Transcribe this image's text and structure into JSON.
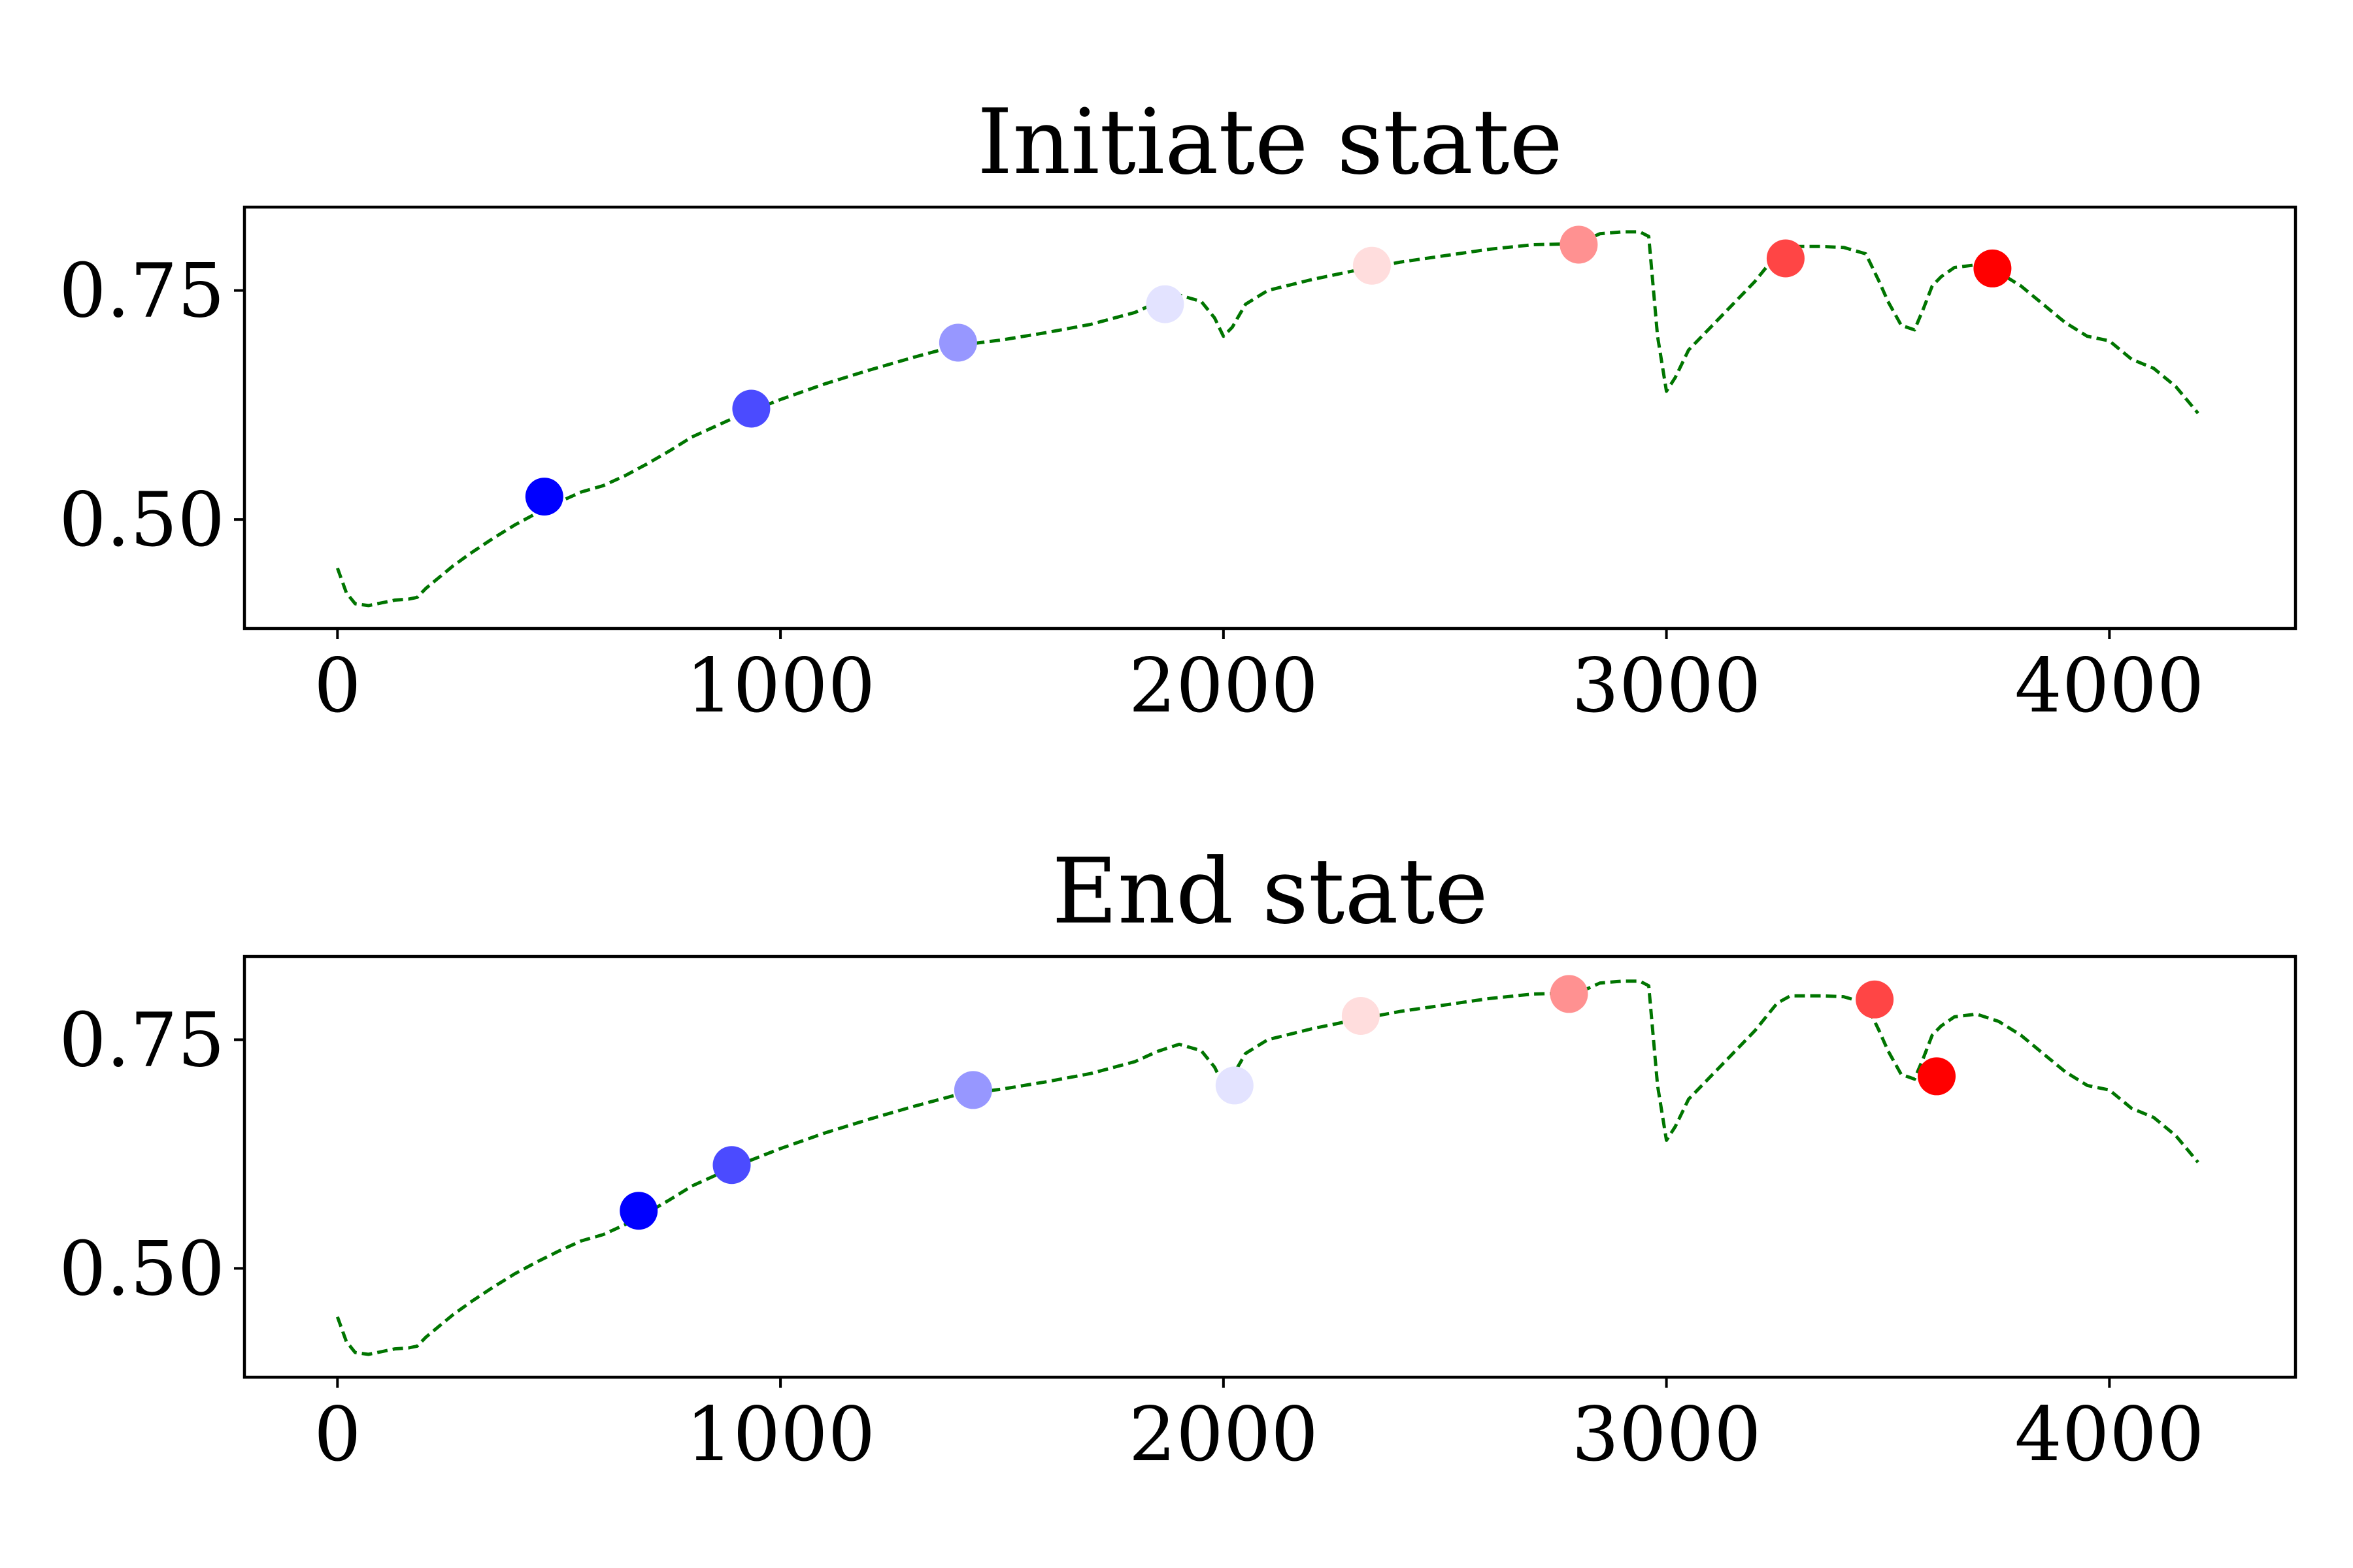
{
  "chart_data": [
    {
      "type": "line",
      "title": "Initiate state",
      "xlabel": "",
      "ylabel": "",
      "xlim": [
        -210,
        4420
      ],
      "ylim": [
        0.381,
        0.841
      ],
      "xticks": [
        0,
        1000,
        2000,
        3000,
        4000
      ],
      "yticks": [
        0.5,
        0.75
      ],
      "xtick_labels": [
        "0",
        "1000",
        "2000",
        "3000",
        "4000"
      ],
      "ytick_labels": [
        "0.50",
        "0.75"
      ],
      "grid": false,
      "line_color": "#007500",
      "line_style": "dashed",
      "curve": {
        "x": [
          0,
          20,
          40,
          70,
          100,
          130,
          160,
          180,
          200,
          230,
          260,
          300,
          350,
          400,
          450,
          500,
          550,
          600,
          650,
          700,
          750,
          800,
          900,
          1000,
          1100,
          1200,
          1300,
          1400,
          1500,
          1600,
          1700,
          1800,
          1850,
          1900,
          1950,
          1980,
          2000,
          2020,
          2050,
          2100,
          2200,
          2300,
          2400,
          2500,
          2600,
          2700,
          2800,
          2850,
          2900,
          2940,
          2960,
          2980,
          3000,
          3020,
          3050,
          3100,
          3150,
          3200,
          3250,
          3280,
          3300,
          3350,
          3400,
          3450,
          3480,
          3500,
          3530,
          3560,
          3580,
          3600,
          3620,
          3650,
          3700,
          3750,
          3800,
          3850,
          3900,
          3950,
          4000,
          4050,
          4100,
          4150,
          4200
        ],
        "y": [
          0.447,
          0.42,
          0.408,
          0.406,
          0.409,
          0.412,
          0.413,
          0.415,
          0.425,
          0.437,
          0.449,
          0.463,
          0.479,
          0.494,
          0.507,
          0.519,
          0.53,
          0.537,
          0.548,
          0.561,
          0.575,
          0.59,
          0.612,
          0.631,
          0.648,
          0.663,
          0.677,
          0.69,
          0.696,
          0.704,
          0.713,
          0.726,
          0.737,
          0.745,
          0.738,
          0.72,
          0.7,
          0.71,
          0.735,
          0.75,
          0.762,
          0.772,
          0.781,
          0.788,
          0.795,
          0.8,
          0.801,
          0.812,
          0.814,
          0.814,
          0.809,
          0.7,
          0.64,
          0.655,
          0.685,
          0.71,
          0.735,
          0.76,
          0.79,
          0.798,
          0.798,
          0.798,
          0.797,
          0.79,
          0.76,
          0.738,
          0.712,
          0.707,
          0.73,
          0.755,
          0.765,
          0.775,
          0.778,
          0.77,
          0.755,
          0.735,
          0.715,
          0.7,
          0.695,
          0.675,
          0.665,
          0.645,
          0.616
        ]
      },
      "points": {
        "x": [
          467,
          934,
          1401,
          1868,
          2335,
          2802,
          3269,
          3736
        ],
        "y": [
          0.525,
          0.621,
          0.693,
          0.735,
          0.777,
          0.8,
          0.785,
          0.774
        ],
        "colors": [
          "#0000ff",
          "#4b4bff",
          "#9797ff",
          "#e3e3ff",
          "#ffdddd",
          "#ff9191",
          "#ff4545",
          "#ff0000"
        ]
      }
    },
    {
      "type": "line",
      "title": "End state",
      "xlabel": "",
      "ylabel": "",
      "xlim": [
        -210,
        4420
      ],
      "ylim": [
        0.381,
        0.841
      ],
      "xticks": [
        0,
        1000,
        2000,
        3000,
        4000
      ],
      "yticks": [
        0.5,
        0.75
      ],
      "xtick_labels": [
        "0",
        "1000",
        "2000",
        "3000",
        "4000"
      ],
      "ytick_labels": [
        "0.50",
        "0.75"
      ],
      "grid": false,
      "line_color": "#007500",
      "line_style": "dashed",
      "curve": {
        "x": [
          0,
          20,
          40,
          70,
          100,
          130,
          160,
          180,
          200,
          230,
          260,
          300,
          350,
          400,
          450,
          500,
          550,
          600,
          650,
          700,
          750,
          800,
          900,
          1000,
          1100,
          1200,
          1300,
          1400,
          1500,
          1600,
          1700,
          1800,
          1850,
          1900,
          1950,
          1980,
          2000,
          2020,
          2050,
          2100,
          2200,
          2300,
          2400,
          2500,
          2600,
          2700,
          2800,
          2850,
          2900,
          2940,
          2960,
          2980,
          3000,
          3020,
          3050,
          3100,
          3150,
          3200,
          3250,
          3280,
          3300,
          3350,
          3400,
          3450,
          3480,
          3500,
          3530,
          3560,
          3580,
          3600,
          3620,
          3650,
          3700,
          3750,
          3800,
          3850,
          3900,
          3950,
          4000,
          4050,
          4100,
          4150,
          4200
        ],
        "y": [
          0.447,
          0.42,
          0.408,
          0.406,
          0.409,
          0.412,
          0.413,
          0.415,
          0.425,
          0.437,
          0.449,
          0.463,
          0.479,
          0.494,
          0.507,
          0.519,
          0.53,
          0.537,
          0.548,
          0.561,
          0.575,
          0.59,
          0.612,
          0.631,
          0.648,
          0.663,
          0.677,
          0.69,
          0.696,
          0.704,
          0.713,
          0.726,
          0.737,
          0.745,
          0.738,
          0.72,
          0.7,
          0.71,
          0.735,
          0.75,
          0.762,
          0.772,
          0.781,
          0.788,
          0.795,
          0.8,
          0.801,
          0.812,
          0.814,
          0.814,
          0.809,
          0.7,
          0.64,
          0.655,
          0.685,
          0.71,
          0.735,
          0.76,
          0.79,
          0.798,
          0.798,
          0.798,
          0.797,
          0.79,
          0.76,
          0.738,
          0.712,
          0.707,
          0.73,
          0.755,
          0.765,
          0.775,
          0.778,
          0.77,
          0.755,
          0.735,
          0.715,
          0.7,
          0.695,
          0.675,
          0.665,
          0.645,
          0.616
        ]
      },
      "points": {
        "x": [
          680,
          890,
          1435,
          2025,
          2310,
          2780,
          3470,
          3610
        ],
        "y": [
          0.563,
          0.613,
          0.695,
          0.7,
          0.776,
          0.8,
          0.794,
          0.71
        ],
        "colors": [
          "#0000ff",
          "#4b4bff",
          "#9797ff",
          "#e3e3ff",
          "#ffdddd",
          "#ff9191",
          "#ff4545",
          "#ff0000"
        ]
      }
    }
  ]
}
